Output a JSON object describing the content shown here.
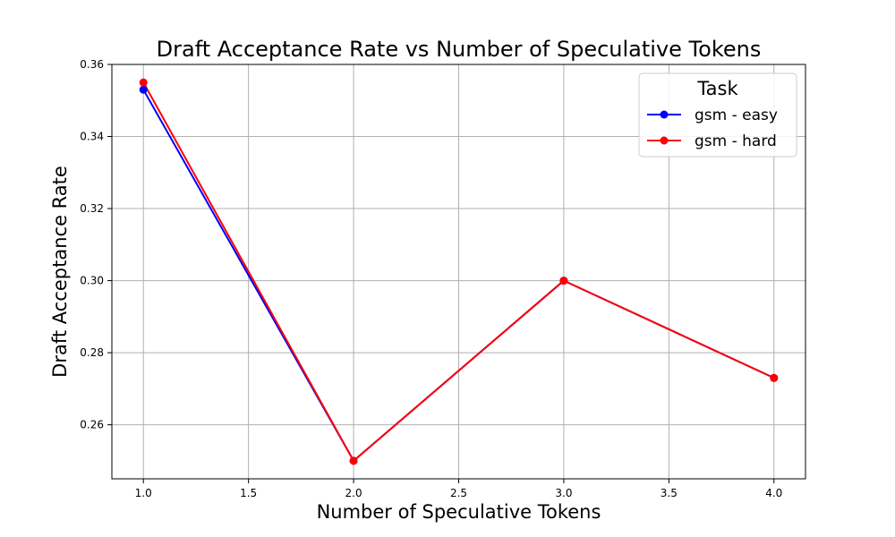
{
  "chart_data": {
    "type": "line",
    "title": "Draft Acceptance Rate vs Number of Speculative Tokens",
    "xlabel": "Number of Speculative Tokens",
    "ylabel": "Draft Acceptance Rate",
    "x": [
      1.0,
      2.0,
      3.0,
      4.0
    ],
    "xlim": [
      0.85,
      4.15
    ],
    "ylim": [
      0.245,
      0.36
    ],
    "xticks": [
      1.0,
      1.5,
      2.0,
      2.5,
      3.0,
      3.5,
      4.0
    ],
    "xtick_labels": [
      "1.0",
      "1.5",
      "2.0",
      "2.5",
      "3.0",
      "3.5",
      "4.0"
    ],
    "yticks": [
      0.26,
      0.28,
      0.3,
      0.32,
      0.34,
      0.36
    ],
    "ytick_labels": [
      "0.26",
      "0.28",
      "0.30",
      "0.32",
      "0.34",
      "0.36"
    ],
    "grid": true,
    "legend": {
      "title": "Task",
      "placement": "top-right"
    },
    "series": [
      {
        "name": "gsm - easy",
        "color": "#0000ff",
        "values": [
          0.353,
          0.25,
          0.3,
          0.273
        ]
      },
      {
        "name": "gsm - hard",
        "color": "#ff0000",
        "values": [
          0.355,
          0.25,
          0.3,
          0.273
        ]
      }
    ]
  }
}
